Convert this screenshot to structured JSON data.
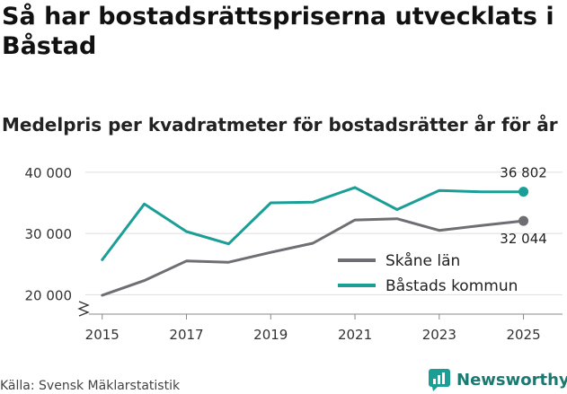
{
  "title": "Så har bostadsrättspriserna utvecklats i Båstad",
  "subtitle": "Medelpris per kvadratmeter för bostadsrätter år för år",
  "source": "Källa: Svensk Mäklarstatistik",
  "brand": "Newsworthy",
  "colors": {
    "skane": "#6e6e73",
    "bastad": "#1a9e96",
    "grid": "#dddddd",
    "brand": "#1a7a72"
  },
  "chart_data": {
    "type": "line",
    "x": [
      2015,
      2016,
      2017,
      2018,
      2019,
      2020,
      2021,
      2022,
      2023,
      2024,
      2025
    ],
    "series": [
      {
        "name": "Skåne län",
        "values": [
          19900,
          22300,
          25500,
          25300,
          26900,
          28400,
          32200,
          32400,
          30500,
          31300,
          32044
        ]
      },
      {
        "name": "Båstads kommun",
        "values": [
          25700,
          34800,
          30300,
          28300,
          35000,
          35100,
          37500,
          33900,
          37000,
          36800,
          36802
        ]
      }
    ],
    "yticks": [
      "20 000",
      "30 000",
      "40 000"
    ],
    "ytick_values": [
      20000,
      30000,
      40000
    ],
    "xticks": [
      "2015",
      "2017",
      "2019",
      "2021",
      "2023",
      "2025"
    ],
    "xtick_values": [
      2015,
      2017,
      2019,
      2021,
      2023,
      2025
    ],
    "end_labels": {
      "skane": "32 044",
      "bastad": "36 802"
    },
    "ylim": [
      18000,
      41000
    ],
    "xlim": [
      2014.6,
      2025.5
    ],
    "legend": [
      "Skåne län",
      "Båstads kommun"
    ],
    "legend_position": "right"
  }
}
